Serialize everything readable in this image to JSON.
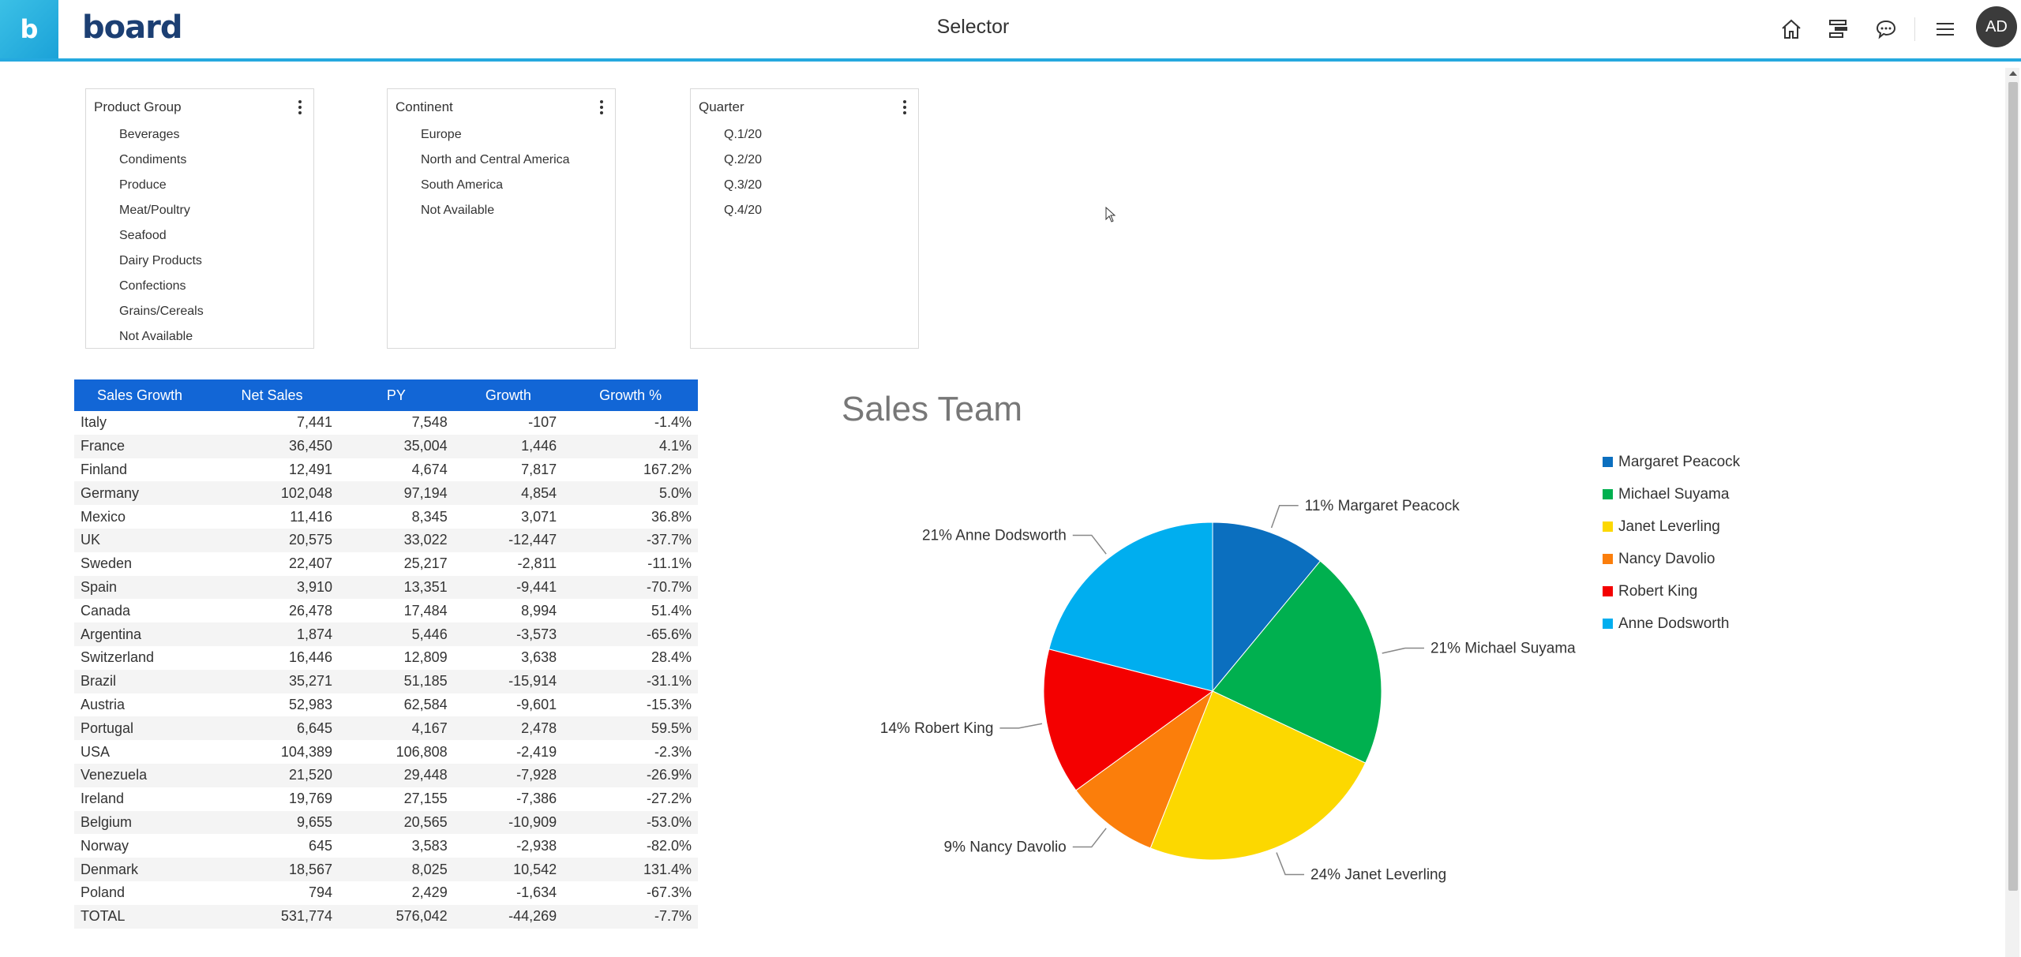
{
  "header": {
    "logo_letter": "b",
    "brand": "board",
    "title": "Selector",
    "avatar": "AD",
    "icons": [
      "home-icon",
      "dataflow-icon",
      "comment-icon",
      "menu-icon"
    ]
  },
  "selectors": [
    {
      "title": "Product Group",
      "items": [
        "Beverages",
        "Condiments",
        "Produce",
        "Meat/Poultry",
        "Seafood",
        "Dairy Products",
        "Confections",
        "Grains/Cereals",
        "Not Available"
      ]
    },
    {
      "title": "Continent",
      "items": [
        "Europe",
        "North and Central America",
        "South America",
        "Not Available"
      ]
    },
    {
      "title": "Quarter",
      "items": [
        "Q.1/20",
        "Q.2/20",
        "Q.3/20",
        "Q.4/20"
      ]
    }
  ],
  "table": {
    "headers": [
      "Sales Growth",
      "Net Sales",
      "PY",
      "Growth",
      "Growth %"
    ],
    "rows": [
      [
        "Italy",
        "7,441",
        "7,548",
        "-107",
        "-1.4%"
      ],
      [
        "France",
        "36,450",
        "35,004",
        "1,446",
        "4.1%"
      ],
      [
        "Finland",
        "12,491",
        "4,674",
        "7,817",
        "167.2%"
      ],
      [
        "Germany",
        "102,048",
        "97,194",
        "4,854",
        "5.0%"
      ],
      [
        "Mexico",
        "11,416",
        "8,345",
        "3,071",
        "36.8%"
      ],
      [
        "UK",
        "20,575",
        "33,022",
        "-12,447",
        "-37.7%"
      ],
      [
        "Sweden",
        "22,407",
        "25,217",
        "-2,811",
        "-11.1%"
      ],
      [
        "Spain",
        "3,910",
        "13,351",
        "-9,441",
        "-70.7%"
      ],
      [
        "Canada",
        "26,478",
        "17,484",
        "8,994",
        "51.4%"
      ],
      [
        "Argentina",
        "1,874",
        "5,446",
        "-3,573",
        "-65.6%"
      ],
      [
        "Switzerland",
        "16,446",
        "12,809",
        "3,638",
        "28.4%"
      ],
      [
        "Brazil",
        "35,271",
        "51,185",
        "-15,914",
        "-31.1%"
      ],
      [
        "Austria",
        "52,983",
        "62,584",
        "-9,601",
        "-15.3%"
      ],
      [
        "Portugal",
        "6,645",
        "4,167",
        "2,478",
        "59.5%"
      ],
      [
        "USA",
        "104,389",
        "106,808",
        "-2,419",
        "-2.3%"
      ],
      [
        "Venezuela",
        "21,520",
        "29,448",
        "-7,928",
        "-26.9%"
      ],
      [
        "Ireland",
        "19,769",
        "27,155",
        "-7,386",
        "-27.2%"
      ],
      [
        "Belgium",
        "9,655",
        "20,565",
        "-10,909",
        "-53.0%"
      ],
      [
        "Norway",
        "645",
        "3,583",
        "-2,938",
        "-82.0%"
      ],
      [
        "Denmark",
        "18,567",
        "8,025",
        "10,542",
        "131.4%"
      ],
      [
        "Poland",
        "794",
        "2,429",
        "-1,634",
        "-67.3%"
      ]
    ],
    "total": [
      "TOTAL",
      "531,774",
      "576,042",
      "-44,269",
      "-7.7%"
    ]
  },
  "chart_data": {
    "type": "pie",
    "title": "Sales Team",
    "legend_position": "right",
    "slices": [
      {
        "name": "Margaret Peacock",
        "pct": 11,
        "color": "#0b6fbf",
        "label": "11% Margaret Peacock"
      },
      {
        "name": "Michael Suyama",
        "pct": 21,
        "color": "#00b04f",
        "label": "21% Michael Suyama"
      },
      {
        "name": "Janet Leverling",
        "pct": 24,
        "color": "#fcd800",
        "label": "24% Janet Leverling"
      },
      {
        "name": "Nancy Davolio",
        "pct": 9,
        "color": "#fb7e0b",
        "label": "9% Nancy Davolio"
      },
      {
        "name": "Robert King",
        "pct": 14,
        "color": "#f40000",
        "label": "14% Robert King"
      },
      {
        "name": "Anne Dodsworth",
        "pct": 21,
        "color": "#00aeef",
        "label": "21% Anne Dodsworth"
      }
    ]
  }
}
